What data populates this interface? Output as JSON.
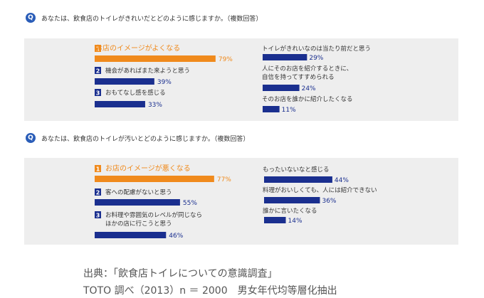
{
  "colors": {
    "accent": "#f08a1c",
    "bar": "#1a2f8f",
    "panel": "#eeeeee",
    "q_icon": "#2a5db8"
  },
  "questions": [
    {
      "icon": "Q",
      "text": "あなたは、飲食店のトイレがきれいだとどのように感じますか。（複数回答）"
    },
    {
      "icon": "Q",
      "text": "あなたは、飲食店のトイレが汚いとどのように感じますか。（複数回答）"
    }
  ],
  "chart_data": [
    {
      "type": "bar",
      "title": "あなたは、飲食店のトイレがきれいだとどのように感じますか。（複数回答）",
      "unit": "%",
      "categories": [
        {
          "rank": "1",
          "lines": [
            "お店のイメージがよくなる"
          ],
          "top": true
        },
        {
          "rank": "2",
          "lines": [
            "機会があればまた来ようと思う"
          ]
        },
        {
          "rank": "3",
          "lines": [
            "おもてなし感を感じる"
          ]
        },
        {
          "rank": "",
          "lines": [
            "トイレがきれいなのは当たり前だと思う"
          ]
        },
        {
          "rank": "",
          "lines": [
            "人にそのお店を紹介するときに、",
            "自信を持ってすすめられる"
          ]
        },
        {
          "rank": "",
          "lines": [
            "そのお店を誰かに紹介したくなる"
          ]
        }
      ],
      "values": [
        79,
        39,
        33,
        29,
        24,
        11
      ],
      "value_labels": [
        "79%",
        "39%",
        "33%",
        "29%",
        "24%",
        "11%"
      ]
    },
    {
      "type": "bar",
      "title": "あなたは、飲食店のトイレが汚いとどのように感じますか。（複数回答）",
      "unit": "%",
      "categories": [
        {
          "rank": "1",
          "lines": [
            "お店のイメージが悪くなる"
          ],
          "top": true
        },
        {
          "rank": "2",
          "lines": [
            "客への配慮がないと思う"
          ]
        },
        {
          "rank": "3",
          "lines": [
            "お料理や雰囲気のレベルが同じなら",
            "ほかの店に行こうと思う"
          ]
        },
        {
          "rank": "",
          "lines": [
            "もったいないなと感じる"
          ]
        },
        {
          "rank": "",
          "lines": [
            "料理がおいしくても、人には紹介できない"
          ]
        },
        {
          "rank": "",
          "lines": [
            "誰かに言いたくなる"
          ]
        }
      ],
      "values": [
        77,
        55,
        46,
        44,
        36,
        14
      ],
      "value_labels": [
        "77%",
        "55%",
        "46%",
        "44%",
        "36%",
        "14%"
      ]
    }
  ],
  "source": {
    "line1": "出典：「飲食店トイレについての意識調査」",
    "line2": "TOTO 調べ（2013）n ＝ 2000　男女年代均等層化抽出"
  }
}
